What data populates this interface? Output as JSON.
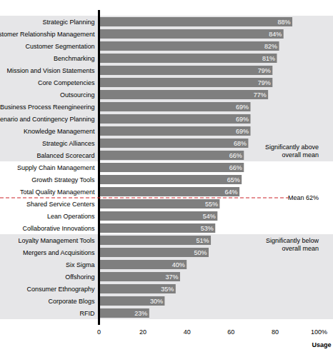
{
  "chart_data": {
    "type": "bar",
    "orientation": "horizontal",
    "categories": [
      "Strategic Planning",
      "Customer Relationship Management",
      "Customer Segmentation",
      "Benchmarking",
      "Mission and Vision Statements",
      "Core Competencies",
      "Outsourcing",
      "Business Process Reengineering",
      "Scenario and Contingency Planning",
      "Knowledge Management",
      "Strategic Alliances",
      "Balanced Scorecard",
      "Supply Chain Management",
      "Growth Strategy Tools",
      "Total Quality Management",
      "Shared Service Centers",
      "Lean Operations",
      "Collaborative Innovations",
      "Loyalty Management Tools",
      "Mergers and Acquisitions",
      "Six Sigma",
      "Offshoring",
      "Consumer Ethnography",
      "Corporate Blogs",
      "RFID"
    ],
    "values": [
      88,
      84,
      82,
      81,
      79,
      79,
      77,
      69,
      69,
      69,
      68,
      66,
      66,
      65,
      64,
      55,
      54,
      53,
      51,
      50,
      40,
      37,
      35,
      30,
      23
    ],
    "value_labels": [
      "88%",
      "84%",
      "82%",
      "81%",
      "79%",
      "79%",
      "77%",
      "69%",
      "69%",
      "69%",
      "68%",
      "66%",
      "66%",
      "65%",
      "64%",
      "55%",
      "54%",
      "53%",
      "51%",
      "50%",
      "40%",
      "37%",
      "35%",
      "30%",
      "23%"
    ],
    "data_labels": true,
    "color": "#7f7f7f",
    "xlabel": "Usage",
    "xlim": [
      0,
      100
    ],
    "xticks": [
      0,
      20,
      40,
      60,
      80,
      {
        "value": 100,
        "label": "100%"
      }
    ],
    "grid": false,
    "mean_line": {
      "value": 62,
      "label": "Mean 62%"
    },
    "bands": [
      {
        "label": "Significantly above overall mean",
        "from": "Strategic Planning",
        "to": "Balanced Scorecard"
      },
      {
        "label": "Significantly below overall mean",
        "from": "Loyalty Management Tools",
        "to": "RFID"
      }
    ]
  }
}
